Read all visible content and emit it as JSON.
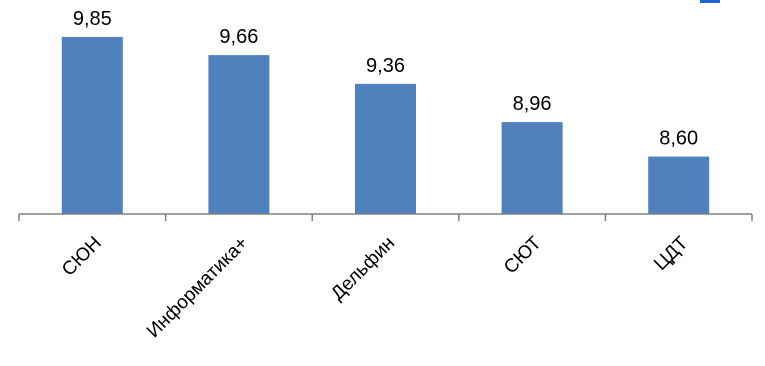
{
  "chart_data": {
    "type": "bar",
    "categories": [
      "СЮН",
      "Информатика+",
      "Дельфин",
      "СЮТ",
      "ЦДТ"
    ],
    "values": [
      9.85,
      9.66,
      9.36,
      8.96,
      8.6
    ],
    "data_labels": [
      "9,85",
      "9,66",
      "9,36",
      "8,96",
      "8,60"
    ],
    "title": "",
    "xlabel": "",
    "ylabel": "",
    "ylim": [
      8.0,
      10.1
    ],
    "grid": false,
    "legend": "none",
    "bar_color": "#4f81bd",
    "axis_color": "#808080",
    "accent_line_color": "#1e64d2"
  }
}
